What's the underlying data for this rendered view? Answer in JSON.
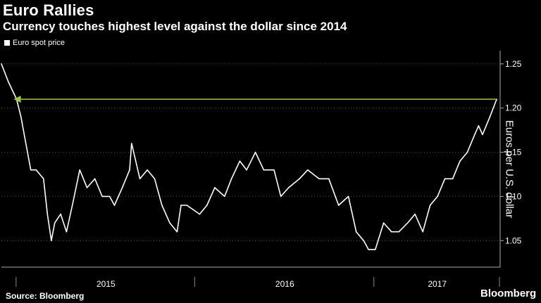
{
  "header": {
    "title": "Euro Rallies",
    "subtitle": "Currency touches highest level against the dollar since 2014"
  },
  "legend": {
    "label": "Euro spot price",
    "color": "#ffffff"
  },
  "footer": {
    "source": "Source: Bloomberg",
    "brand": "Bloomberg"
  },
  "colors": {
    "background": "#000000",
    "line": "#ffffff",
    "annotation": "#9acd32",
    "grid": "#555555"
  },
  "chart_data": {
    "type": "line",
    "title": "Euro Rallies",
    "subtitle": "Currency touches highest level against the dollar since 2014",
    "xlabel": "",
    "ylabel": "Euros per U.S. dollar",
    "ylim": [
      1.02,
      1.265
    ],
    "xlim": [
      "2014-12-01",
      "2017-09-15"
    ],
    "yticks": [
      1.05,
      1.1,
      1.15,
      1.2,
      1.25
    ],
    "ytick_labels": [
      "1.05",
      "1.10",
      "1.15",
      "1.20",
      "1.25"
    ],
    "xtick_labels": [
      "2015",
      "2016",
      "2017"
    ],
    "grid": true,
    "legend_position": "top-left",
    "series": [
      {
        "name": "Euro spot price",
        "x": [
          "2014-12-01",
          "2014-12-15",
          "2015-01-01",
          "2015-01-10",
          "2015-01-20",
          "2015-01-30",
          "2015-02-10",
          "2015-02-25",
          "2015-03-05",
          "2015-03-13",
          "2015-03-20",
          "2015-04-01",
          "2015-04-13",
          "2015-04-25",
          "2015-05-10",
          "2015-05-25",
          "2015-06-10",
          "2015-06-25",
          "2015-07-10",
          "2015-07-20",
          "2015-08-05",
          "2015-08-20",
          "2015-08-24",
          "2015-09-10",
          "2015-09-25",
          "2015-10-10",
          "2015-10-25",
          "2015-11-10",
          "2015-11-25",
          "2015-12-03",
          "2015-12-15",
          "2016-01-10",
          "2016-01-25",
          "2016-02-10",
          "2016-03-01",
          "2016-03-15",
          "2016-04-01",
          "2016-04-15",
          "2016-05-03",
          "2016-05-20",
          "2016-06-10",
          "2016-06-24",
          "2016-07-10",
          "2016-08-01",
          "2016-08-18",
          "2016-09-10",
          "2016-09-30",
          "2016-10-20",
          "2016-11-09",
          "2016-11-25",
          "2016-12-10",
          "2016-12-20",
          "2017-01-03",
          "2017-01-20",
          "2017-02-05",
          "2017-02-20",
          "2017-03-10",
          "2017-03-25",
          "2017-04-10",
          "2017-04-25",
          "2017-05-10",
          "2017-05-25",
          "2017-06-10",
          "2017-06-25",
          "2017-07-10",
          "2017-07-25",
          "2017-08-02",
          "2017-08-10",
          "2017-08-25",
          "2017-09-08"
        ],
        "values": [
          1.25,
          1.23,
          1.21,
          1.19,
          1.16,
          1.13,
          1.13,
          1.12,
          1.08,
          1.05,
          1.07,
          1.08,
          1.06,
          1.09,
          1.13,
          1.11,
          1.12,
          1.1,
          1.1,
          1.09,
          1.11,
          1.13,
          1.16,
          1.12,
          1.13,
          1.12,
          1.09,
          1.07,
          1.06,
          1.09,
          1.09,
          1.08,
          1.09,
          1.11,
          1.1,
          1.12,
          1.14,
          1.13,
          1.15,
          1.13,
          1.13,
          1.1,
          1.11,
          1.12,
          1.13,
          1.12,
          1.12,
          1.09,
          1.1,
          1.06,
          1.05,
          1.04,
          1.04,
          1.07,
          1.06,
          1.06,
          1.07,
          1.08,
          1.06,
          1.09,
          1.1,
          1.12,
          1.12,
          1.14,
          1.15,
          1.17,
          1.18,
          1.17,
          1.19,
          1.21
        ]
      }
    ],
    "annotations": [
      {
        "type": "arrow",
        "y": 1.21,
        "x_from": "2017-09-08",
        "x_to": "2015-01-01",
        "color": "#9acd32"
      }
    ]
  }
}
